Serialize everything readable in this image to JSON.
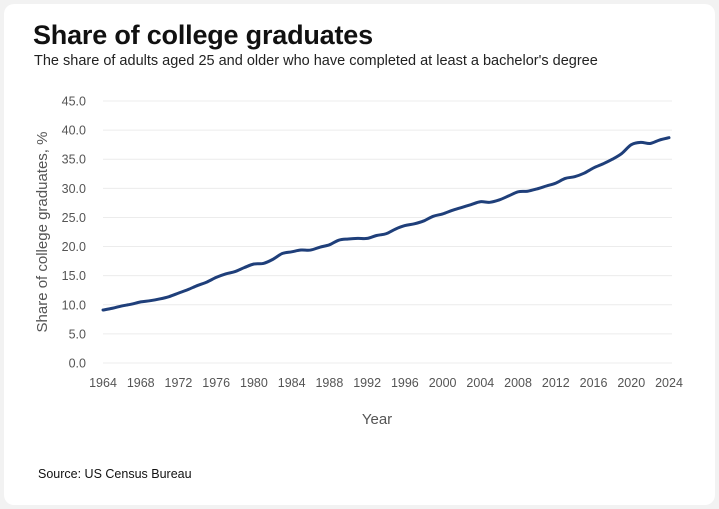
{
  "chart_data": {
    "type": "line",
    "title": "Share of college graduates",
    "subtitle": "The share of adults aged 25 and older who have completed at least a bachelor's degree",
    "xlabel": "Year",
    "ylabel": "Share of college graduates, %",
    "source": "US Census Bureau",
    "source_label": "Source: US Census Bureau",
    "ylim": [
      0,
      45
    ],
    "xlim": [
      1964,
      2024
    ],
    "yticks": [
      "0.0",
      "5.0",
      "10.0",
      "15.0",
      "20.0",
      "25.0",
      "30.0",
      "35.0",
      "40.0",
      "45.0"
    ],
    "xticks": [
      "1964",
      "1968",
      "1972",
      "1976",
      "1980",
      "1984",
      "1988",
      "1992",
      "1996",
      "2000",
      "2004",
      "2008",
      "2012",
      "2016",
      "2020",
      "2024"
    ],
    "grid": true,
    "line_color": "#1f3f7a",
    "series": [
      {
        "x": [
          1964,
          1965,
          1966,
          1967,
          1968,
          1969,
          1970,
          1971,
          1972,
          1973,
          1974,
          1975,
          1976,
          1977,
          1978,
          1979,
          1980,
          1981,
          1982,
          1983,
          1984,
          1985,
          1986,
          1987,
          1988,
          1989,
          1990,
          1991,
          1992,
          1993,
          1994,
          1995,
          1996,
          1997,
          1998,
          1999,
          2000,
          2001,
          2002,
          2003,
          2004,
          2005,
          2006,
          2007,
          2008,
          2009,
          2010,
          2011,
          2012,
          2013,
          2014,
          2015,
          2016,
          2017,
          2018,
          2019,
          2020,
          2021,
          2022,
          2023,
          2024
        ],
        "values": [
          9.1,
          9.4,
          9.8,
          10.1,
          10.5,
          10.7,
          11.0,
          11.4,
          12.0,
          12.6,
          13.3,
          13.9,
          14.7,
          15.3,
          15.7,
          16.4,
          17.0,
          17.1,
          17.8,
          18.8,
          19.1,
          19.4,
          19.4,
          19.9,
          20.3,
          21.1,
          21.3,
          21.4,
          21.4,
          21.9,
          22.2,
          23.0,
          23.6,
          23.9,
          24.4,
          25.2,
          25.6,
          26.2,
          26.7,
          27.2,
          27.7,
          27.6,
          28.0,
          28.7,
          29.4,
          29.5,
          29.9,
          30.4,
          30.9,
          31.7,
          32.0,
          32.6,
          33.5,
          34.2,
          35.0,
          36.0,
          37.5,
          37.9,
          37.7,
          38.3,
          38.7
        ]
      }
    ]
  }
}
